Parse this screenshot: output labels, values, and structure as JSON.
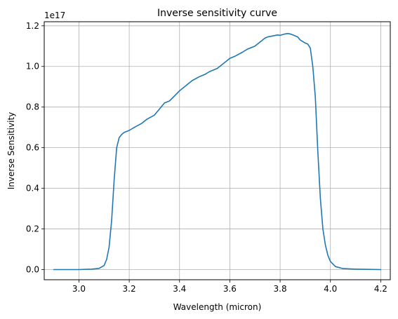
{
  "chart_data": {
    "type": "line",
    "title": "Inverse sensitivity curve",
    "xlabel": "Wavelength (micron)",
    "ylabel": "Inverse Sensitivity",
    "offset_text": "1e17",
    "xlim": [
      2.862,
      4.238
    ],
    "ylim": [
      -0.05,
      1.22
    ],
    "xticks": [
      3.0,
      3.2,
      3.4,
      3.6,
      3.8,
      4.0,
      4.2
    ],
    "xtick_labels": [
      "3.0",
      "3.2",
      "3.4",
      "3.6",
      "3.8",
      "4.0",
      "4.2"
    ],
    "yticks": [
      0.0,
      0.2,
      0.4,
      0.6,
      0.8,
      1.0,
      1.2
    ],
    "ytick_labels": [
      "0.0",
      "0.2",
      "0.4",
      "0.6",
      "0.8",
      "1.0",
      "1.2"
    ],
    "grid": true,
    "line_color": "#1f77b4",
    "series": [
      {
        "x": [
          2.9,
          3.0,
          3.05,
          3.08,
          3.1,
          3.11,
          3.12,
          3.13,
          3.14,
          3.15,
          3.16,
          3.17,
          3.18,
          3.2,
          3.22,
          3.25,
          3.27,
          3.3,
          3.32,
          3.34,
          3.36,
          3.38,
          3.4,
          3.42,
          3.45,
          3.48,
          3.5,
          3.52,
          3.55,
          3.57,
          3.6,
          3.62,
          3.65,
          3.67,
          3.7,
          3.72,
          3.74,
          3.75,
          3.77,
          3.79,
          3.8,
          3.82,
          3.83,
          3.84,
          3.85,
          3.87,
          3.88,
          3.9,
          3.91,
          3.92,
          3.93,
          3.94,
          3.95,
          3.96,
          3.97,
          3.98,
          3.99,
          4.0,
          4.02,
          4.05,
          4.1,
          4.15,
          4.2
        ],
        "values": [
          0.0,
          0.0,
          0.002,
          0.006,
          0.02,
          0.05,
          0.11,
          0.24,
          0.44,
          0.6,
          0.65,
          0.665,
          0.675,
          0.685,
          0.7,
          0.72,
          0.74,
          0.76,
          0.79,
          0.82,
          0.83,
          0.855,
          0.88,
          0.9,
          0.93,
          0.95,
          0.96,
          0.975,
          0.99,
          1.01,
          1.04,
          1.05,
          1.07,
          1.085,
          1.1,
          1.12,
          1.14,
          1.145,
          1.15,
          1.155,
          1.153,
          1.16,
          1.162,
          1.16,
          1.155,
          1.145,
          1.13,
          1.115,
          1.11,
          1.09,
          1.0,
          0.85,
          0.58,
          0.35,
          0.2,
          0.12,
          0.07,
          0.04,
          0.015,
          0.005,
          0.002,
          0.001,
          0.0
        ]
      }
    ]
  }
}
